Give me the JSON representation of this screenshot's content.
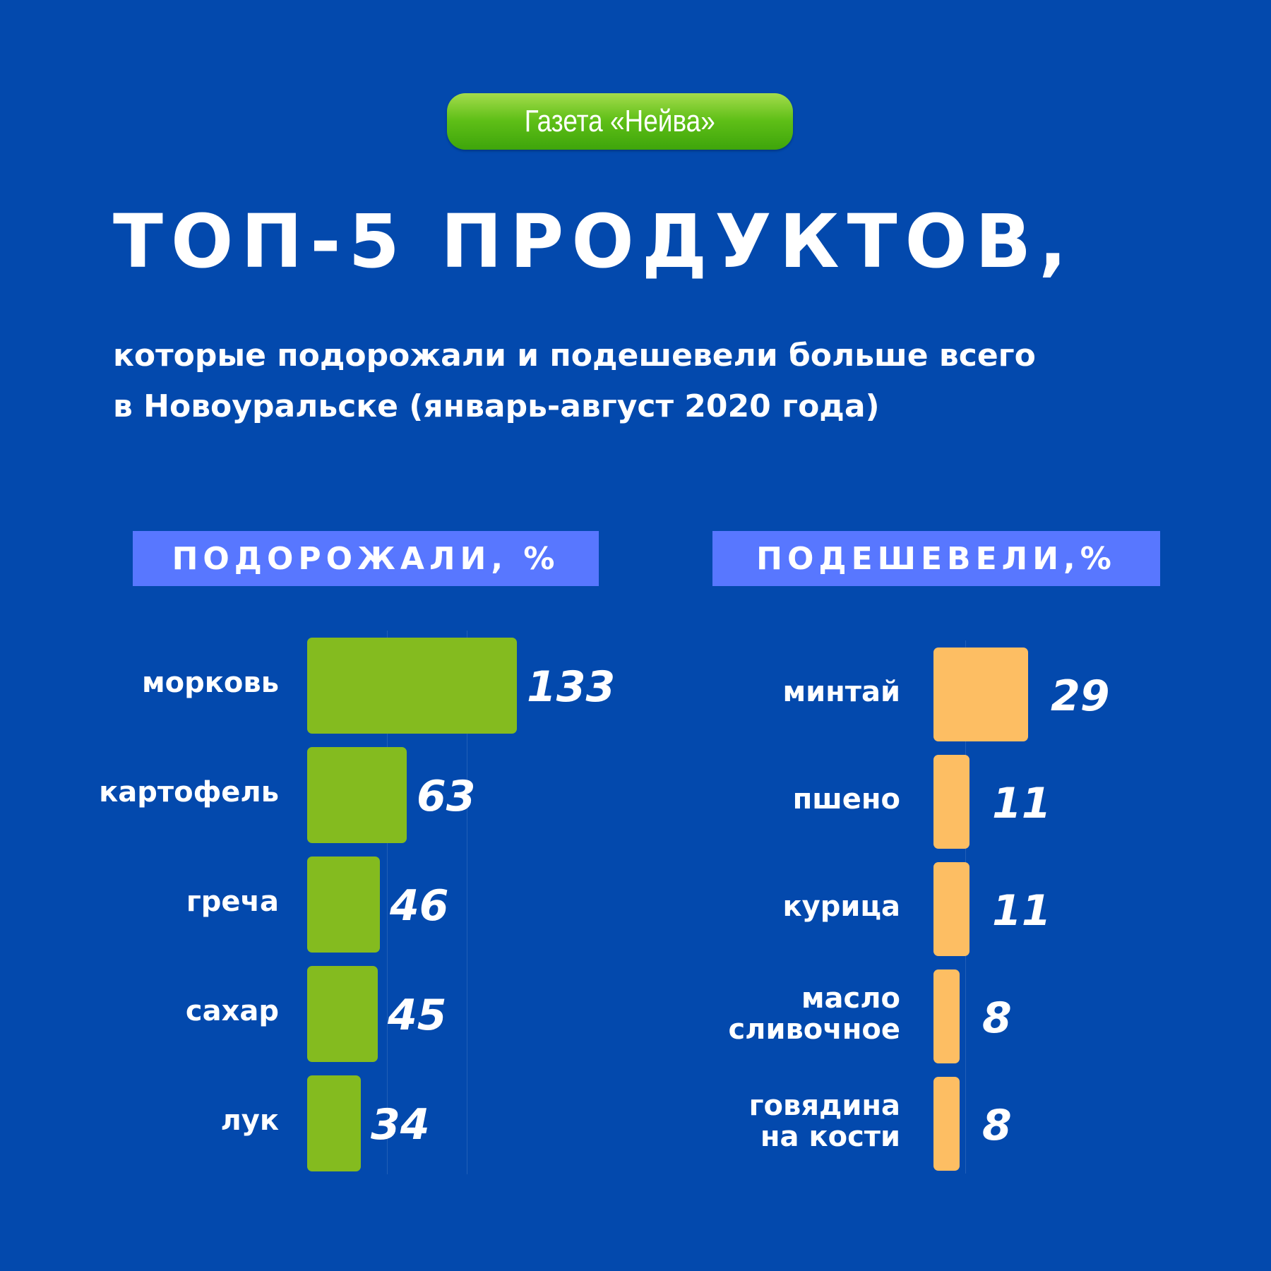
{
  "badge": {
    "text": "Газета «Нейва»"
  },
  "title": "ТОП-5 ПРОДУКТОВ,",
  "subtitle": {
    "line1": "которые подорожали и подешевели больше всего",
    "line2": "в Новоуральске (январь-август 2020 года)"
  },
  "colors": {
    "background": "#0349ad",
    "badge": "#5fbf17",
    "section_header": "#5877ff",
    "increase_bars": "#84bb1f",
    "decrease_bars": "#fdbe63"
  },
  "chart_data": [
    {
      "type": "bar",
      "orientation": "horizontal",
      "title": "ПОДОРОЖАЛИ, %",
      "categories": [
        "морковь",
        "картофель",
        "греча",
        "сахар",
        "лук"
      ],
      "values": [
        133,
        63,
        46,
        45,
        34
      ],
      "data_labels": [
        "133",
        "63",
        "46",
        "45",
        "34"
      ],
      "grid": false,
      "legend": false
    },
    {
      "type": "bar",
      "orientation": "horizontal",
      "title": "ПОДЕШЕВЕЛИ,%",
      "categories": [
        "минтай",
        "пшено",
        "курица",
        "масло\nсливочное",
        "говядина\nна кости"
      ],
      "values": [
        29,
        11,
        11,
        8,
        8
      ],
      "data_labels": [
        "29",
        "11",
        "11",
        "8",
        "8"
      ],
      "grid": false,
      "legend": false
    }
  ]
}
